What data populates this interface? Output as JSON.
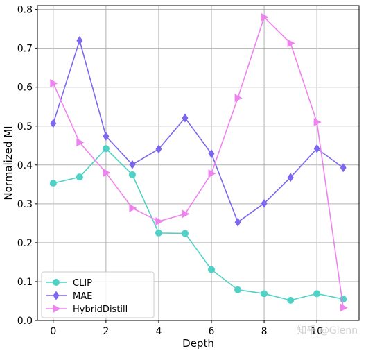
{
  "chart_data": {
    "type": "line",
    "xlabel": "Depth",
    "ylabel": "Normalized MI",
    "x": [
      0,
      1,
      2,
      3,
      4,
      5,
      6,
      7,
      8,
      9,
      10,
      11
    ],
    "xlim": [
      -0.6,
      11.6
    ],
    "ylim": [
      0,
      0.81
    ],
    "xticks": [
      0,
      2,
      4,
      6,
      8,
      10
    ],
    "yticks": [
      0.0,
      0.1,
      0.2,
      0.3,
      0.4,
      0.5,
      0.6,
      0.7,
      0.8
    ],
    "grid": true,
    "legend_position": "lower-left",
    "series": [
      {
        "name": "CLIP",
        "marker": "circle",
        "color": "#4fd1c5",
        "values": [
          0.353,
          0.369,
          0.442,
          0.375,
          0.225,
          0.224,
          0.131,
          0.079,
          0.069,
          0.052,
          0.069,
          0.055
        ]
      },
      {
        "name": "MAE",
        "marker": "diamond",
        "color": "#7b68ee",
        "values": [
          0.507,
          0.72,
          0.474,
          0.401,
          0.441,
          0.521,
          0.429,
          0.253,
          0.301,
          0.368,
          0.442,
          0.393
        ]
      },
      {
        "name": "HybridDistill",
        "marker": "triangle-right",
        "color": "#ee82ee",
        "values": [
          0.61,
          0.458,
          0.38,
          0.289,
          0.255,
          0.274,
          0.378,
          0.572,
          0.78,
          0.713,
          0.51,
          0.033
        ]
      }
    ]
  },
  "watermark": "知乎 @Glenn"
}
